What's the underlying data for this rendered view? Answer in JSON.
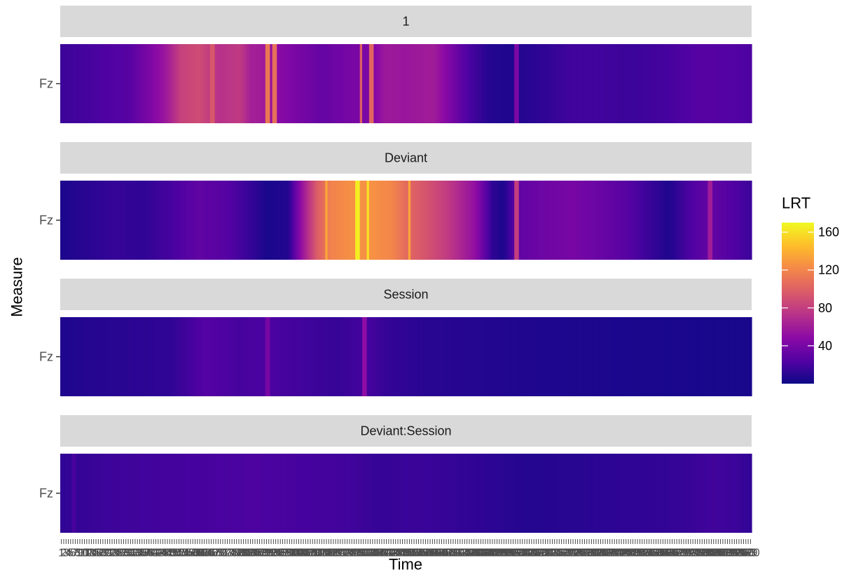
{
  "chart_data": {
    "type": "heatmap",
    "layout": "faceted",
    "xlabel": "Time",
    "ylabel": "Measure",
    "y_categories": [
      "Fz"
    ],
    "x_count": 300,
    "x_tick_labels_overplotted": true,
    "colorscale": {
      "name": "plasma",
      "stops": [
        "#0d0887",
        "#5302a3",
        "#8b0aa5",
        "#b83289",
        "#db5c68",
        "#f48849",
        "#febd2a",
        "#f0f921"
      ]
    },
    "legend": {
      "title": "LRT",
      "placement": "right",
      "range": [
        0,
        170
      ],
      "ticks": [
        40,
        80,
        120,
        160
      ]
    },
    "facets": [
      {
        "label": "1",
        "profile": [
          [
            0,
            16
          ],
          [
            60,
            22
          ],
          [
            100,
            26
          ],
          [
            125,
            40
          ],
          [
            150,
            55
          ],
          [
            175,
            82
          ],
          [
            200,
            88
          ],
          [
            230,
            72
          ],
          [
            260,
            78
          ],
          [
            275,
            62
          ],
          [
            290,
            60
          ],
          [
            315,
            48
          ],
          [
            345,
            40
          ],
          [
            380,
            32
          ],
          [
            420,
            40
          ],
          [
            450,
            42
          ],
          [
            470,
            58
          ],
          [
            500,
            56
          ],
          [
            540,
            60
          ],
          [
            560,
            45
          ],
          [
            590,
            22
          ],
          [
            620,
            8
          ],
          [
            650,
            6
          ],
          [
            700,
            12
          ],
          [
            740,
            18
          ],
          [
            780,
            18
          ],
          [
            830,
            16
          ],
          [
            880,
            20
          ],
          [
            930,
            26
          ],
          [
            980,
            24
          ],
          [
            1000,
            22
          ]
        ],
        "spikes": [
          [
            220,
            95
          ],
          [
            300,
            112
          ],
          [
            310,
            108
          ],
          [
            435,
            100
          ],
          [
            450,
            102
          ],
          [
            660,
            42
          ]
        ]
      },
      {
        "label": "Deviant",
        "profile": [
          [
            0,
            5
          ],
          [
            40,
            10
          ],
          [
            80,
            14
          ],
          [
            120,
            12
          ],
          [
            160,
            20
          ],
          [
            200,
            30
          ],
          [
            240,
            26
          ],
          [
            270,
            16
          ],
          [
            300,
            4
          ],
          [
            330,
            8
          ],
          [
            350,
            55
          ],
          [
            370,
            95
          ],
          [
            390,
            118
          ],
          [
            420,
            125
          ],
          [
            450,
            126
          ],
          [
            480,
            120
          ],
          [
            505,
            102
          ],
          [
            530,
            92
          ],
          [
            560,
            78
          ],
          [
            600,
            52
          ],
          [
            625,
            12
          ],
          [
            640,
            5
          ],
          [
            660,
            30
          ],
          [
            700,
            36
          ],
          [
            740,
            40
          ],
          [
            780,
            34
          ],
          [
            820,
            26
          ],
          [
            850,
            16
          ],
          [
            880,
            6
          ],
          [
            910,
            22
          ],
          [
            940,
            32
          ],
          [
            980,
            22
          ],
          [
            1000,
            16
          ]
        ],
        "spikes": [
          [
            385,
            135
          ],
          [
            430,
            165
          ],
          [
            445,
            160
          ],
          [
            505,
            135
          ],
          [
            660,
            80
          ],
          [
            940,
            60
          ]
        ]
      },
      {
        "label": "Session",
        "profile": [
          [
            0,
            6
          ],
          [
            40,
            8
          ],
          [
            100,
            10
          ],
          [
            160,
            12
          ],
          [
            190,
            20
          ],
          [
            210,
            25
          ],
          [
            260,
            20
          ],
          [
            300,
            22
          ],
          [
            350,
            18
          ],
          [
            400,
            14
          ],
          [
            445,
            20
          ],
          [
            470,
            14
          ],
          [
            520,
            10
          ],
          [
            600,
            8
          ],
          [
            700,
            6
          ],
          [
            800,
            5
          ],
          [
            900,
            4
          ],
          [
            1000,
            4
          ]
        ],
        "spikes": [
          [
            300,
            40
          ],
          [
            440,
            50
          ]
        ]
      },
      {
        "label": "Deviant:Session",
        "profile": [
          [
            0,
            12
          ],
          [
            60,
            16
          ],
          [
            120,
            18
          ],
          [
            200,
            20
          ],
          [
            280,
            22
          ],
          [
            350,
            20
          ],
          [
            420,
            18
          ],
          [
            460,
            14
          ],
          [
            520,
            16
          ],
          [
            600,
            12
          ],
          [
            680,
            8
          ],
          [
            760,
            10
          ],
          [
            840,
            12
          ],
          [
            900,
            14
          ],
          [
            940,
            18
          ],
          [
            980,
            16
          ],
          [
            1000,
            12
          ]
        ],
        "spikes": [
          [
            20,
            20
          ]
        ]
      }
    ]
  }
}
